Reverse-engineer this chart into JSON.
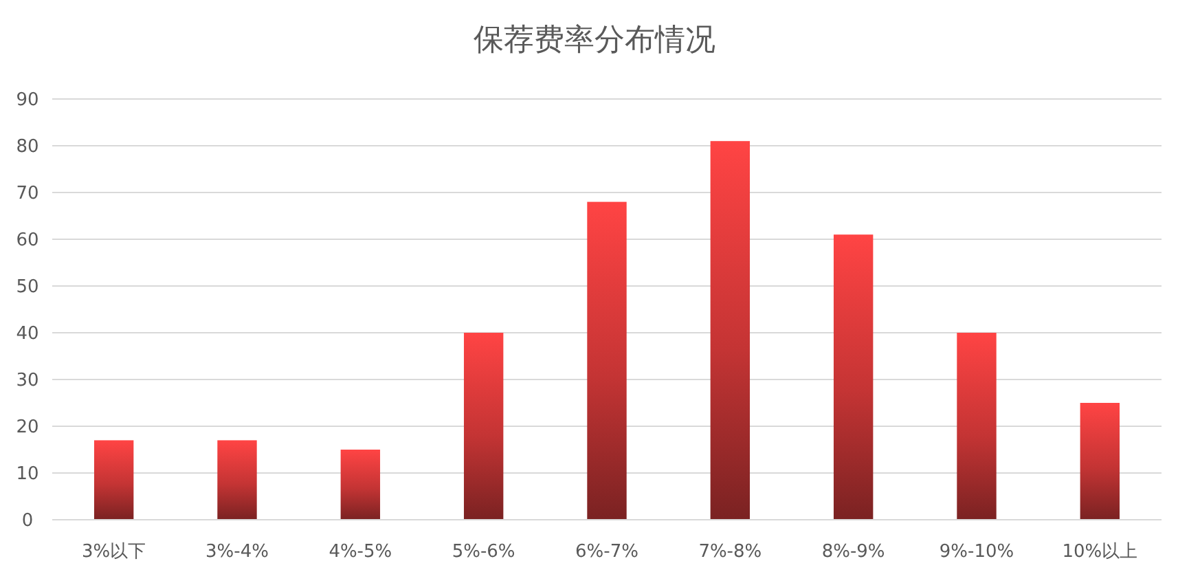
{
  "chart_data": {
    "type": "bar",
    "title": "保荐费率分布情况",
    "categories": [
      "3%以下",
      "3%-4%",
      "4%-5%",
      "5%-6%",
      "6%-7%",
      "7%-8%",
      "8%-9%",
      "9%-10%",
      "10%以上"
    ],
    "values": [
      17,
      17,
      15,
      40,
      68,
      81,
      61,
      40,
      25
    ],
    "color": "#ff4444",
    "ylim": [
      0,
      90
    ],
    "yticks": [
      0,
      10,
      20,
      30,
      40,
      50,
      60,
      70,
      80,
      90
    ],
    "grid": "y"
  }
}
